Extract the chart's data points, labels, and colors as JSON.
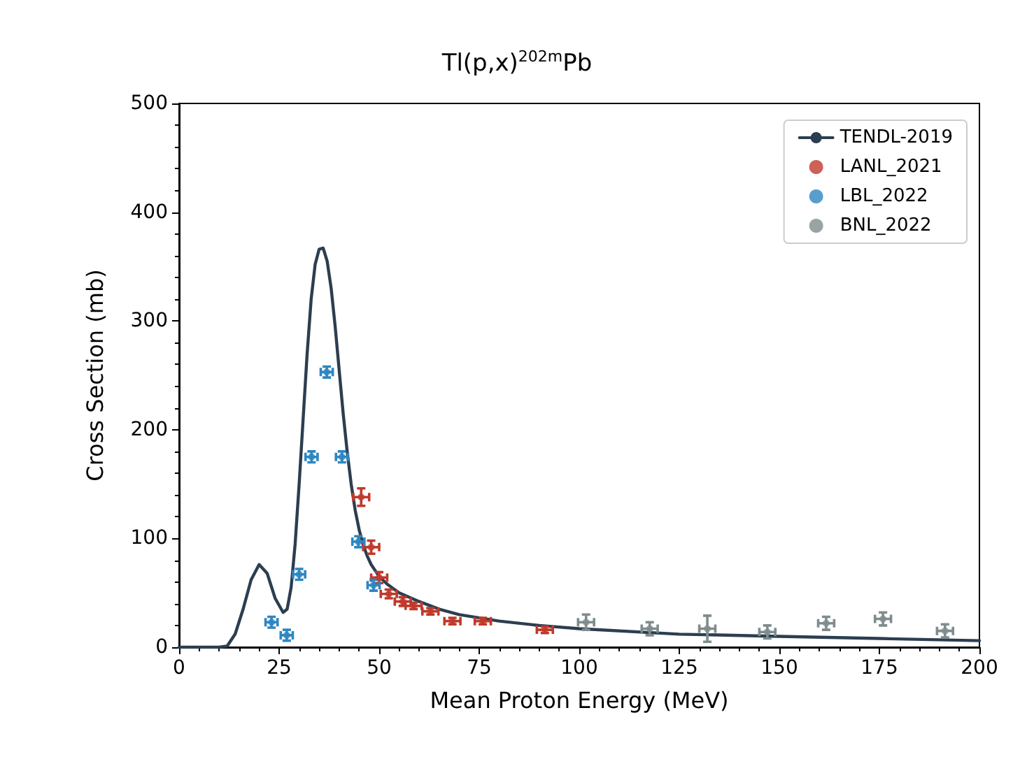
{
  "chart_data": {
    "type": "scatter",
    "title": "Tl(p,x)$^{202m}$Pb",
    "xlabel": "Mean Proton Energy (MeV)",
    "ylabel": "Cross Section (mb)",
    "xlim": [
      0,
      200
    ],
    "xticks": [
      0,
      25,
      50,
      75,
      100,
      125,
      150,
      175,
      200
    ],
    "ylim": [
      0,
      500
    ],
    "yticks": [
      0,
      100,
      200,
      300,
      400,
      500
    ],
    "grid": false,
    "legend": "top right",
    "series": [
      {
        "name": "TENDL-2019",
        "type": "line",
        "color": "#2c3e50",
        "line_style": "solid",
        "marker": "none",
        "x": [
          0,
          10,
          12,
          14,
          16,
          18,
          20,
          22,
          24,
          26,
          27,
          28,
          29,
          30,
          31,
          32,
          33,
          34,
          35,
          36,
          37,
          38,
          39,
          40,
          41,
          42,
          43,
          44,
          45,
          46,
          47,
          48,
          50,
          52,
          55,
          60,
          65,
          70,
          80,
          90,
          100,
          125,
          150,
          175,
          200
        ],
        "values": [
          0,
          0,
          1,
          12,
          35,
          62,
          76,
          68,
          45,
          32,
          35,
          55,
          95,
          150,
          210,
          270,
          320,
          352,
          366,
          367,
          355,
          330,
          295,
          255,
          215,
          180,
          150,
          126,
          108,
          94,
          84,
          76,
          65,
          58,
          50,
          42,
          35,
          30,
          24,
          20,
          17,
          12,
          10,
          8,
          6
        ]
      },
      {
        "name": "LANL_2021",
        "color": "#c0392b",
        "marker": "circle",
        "x": [
          45.5,
          48,
          50,
          52.4,
          55.9,
          58.6,
          62.8,
          68.3,
          75.9,
          91.4
        ],
        "values": [
          138,
          92,
          64,
          49,
          42,
          38,
          33,
          24,
          24,
          16
        ],
        "errors": [
          8,
          6,
          5,
          4,
          4,
          3,
          3,
          3,
          3,
          3
        ],
        "xerrors": [
          2,
          2,
          2,
          2,
          2,
          2,
          2,
          2,
          2,
          2
        ]
      },
      {
        "name": "LBL_2022",
        "color": "#2e86c1",
        "marker": "circle",
        "x": [
          23.1,
          26.9,
          30,
          33.1,
          36.9,
          40.7,
          44.8,
          48.6
        ],
        "values": [
          23,
          11,
          67,
          175,
          253,
          175,
          97,
          57
        ],
        "errors": [
          5,
          5,
          5,
          5,
          5,
          5,
          5,
          5
        ],
        "xerrors": [
          1.5,
          1.5,
          1.5,
          1.5,
          1.5,
          1.5,
          1.5,
          1.5
        ]
      },
      {
        "name": "BNL_2022",
        "color": "#7f8c8d",
        "marker": "circle",
        "x": [
          101.7,
          117.6,
          132,
          147,
          161.7,
          175.9,
          191.4
        ],
        "values": [
          23,
          17,
          17,
          14,
          22,
          26,
          15
        ],
        "errors": [
          7,
          6,
          12,
          6,
          6,
          6,
          6
        ],
        "xerrors": [
          2,
          2,
          2,
          2,
          2,
          2,
          2
        ]
      }
    ]
  }
}
